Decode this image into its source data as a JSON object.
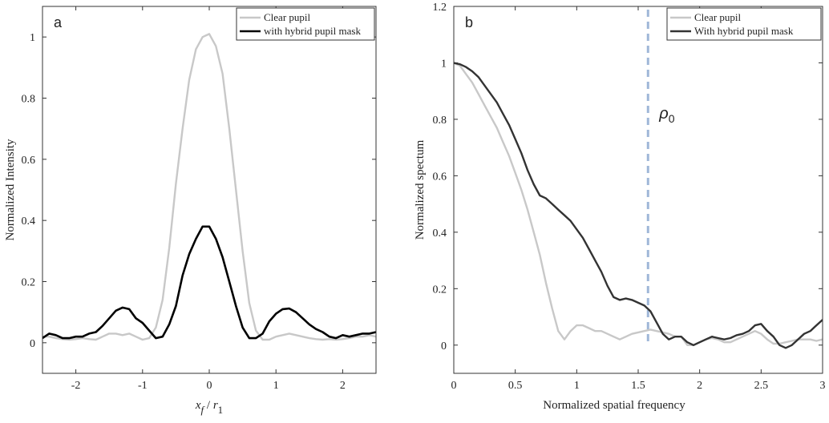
{
  "chart_data": [
    {
      "type": "line",
      "panel_label": "a",
      "xlabel_var": "x",
      "xlabel_var_sub": "f",
      "xlabel_sep": " / ",
      "xlabel_den": "r",
      "xlabel_den_sub": "1",
      "ylabel": "Normalized Intensity",
      "xlim": [
        -2.5,
        2.5
      ],
      "ylim": [
        -0.1,
        1.1
      ],
      "xticks": [
        -2,
        -1,
        0,
        1,
        2
      ],
      "yticks": [
        0,
        0.2,
        0.4,
        0.6,
        0.8,
        1
      ],
      "xticklabels": [
        "-2",
        "-1",
        "0",
        "1",
        "2"
      ],
      "yticklabels": [
        "0",
        "0.2",
        "0.4",
        "0.6",
        "0.8",
        "1"
      ],
      "legend_position": "top-right",
      "series": [
        {
          "name": "Clear pupil",
          "color": "#c8c8c8",
          "x": [
            -2.5,
            -2.4,
            -2.3,
            -2.2,
            -2.1,
            -2.0,
            -1.9,
            -1.8,
            -1.7,
            -1.6,
            -1.5,
            -1.4,
            -1.3,
            -1.2,
            -1.1,
            -1.0,
            -0.9,
            -0.8,
            -0.7,
            -0.6,
            -0.5,
            -0.4,
            -0.3,
            -0.2,
            -0.1,
            0.0,
            0.1,
            0.2,
            0.3,
            0.4,
            0.5,
            0.6,
            0.7,
            0.8,
            0.9,
            1.0,
            1.1,
            1.2,
            1.3,
            1.4,
            1.5,
            1.6,
            1.7,
            1.8,
            1.9,
            2.0,
            2.1,
            2.2,
            2.3,
            2.4,
            2.5
          ],
          "y": [
            0.02,
            0.02,
            0.015,
            0.012,
            0.01,
            0.012,
            0.015,
            0.012,
            0.01,
            0.02,
            0.03,
            0.03,
            0.025,
            0.03,
            0.02,
            0.01,
            0.015,
            0.05,
            0.14,
            0.31,
            0.52,
            0.7,
            0.86,
            0.96,
            1.0,
            1.01,
            0.97,
            0.88,
            0.7,
            0.5,
            0.3,
            0.13,
            0.04,
            0.01,
            0.01,
            0.02,
            0.025,
            0.03,
            0.025,
            0.02,
            0.015,
            0.012,
            0.01,
            0.012,
            0.01,
            0.012,
            0.015,
            0.02,
            0.02,
            0.025,
            0.02
          ]
        },
        {
          "name": "with hybrid pupil mask",
          "color": "#000000",
          "x": [
            -2.5,
            -2.4,
            -2.3,
            -2.2,
            -2.1,
            -2.0,
            -1.9,
            -1.8,
            -1.7,
            -1.6,
            -1.5,
            -1.4,
            -1.3,
            -1.2,
            -1.1,
            -1.0,
            -0.9,
            -0.8,
            -0.7,
            -0.6,
            -0.5,
            -0.4,
            -0.3,
            -0.2,
            -0.1,
            0.0,
            0.1,
            0.2,
            0.3,
            0.4,
            0.5,
            0.6,
            0.7,
            0.8,
            0.9,
            1.0,
            1.1,
            1.2,
            1.3,
            1.4,
            1.5,
            1.6,
            1.7,
            1.8,
            1.9,
            2.0,
            2.1,
            2.2,
            2.3,
            2.4,
            2.5
          ],
          "y": [
            0.015,
            0.03,
            0.025,
            0.015,
            0.015,
            0.02,
            0.02,
            0.03,
            0.035,
            0.055,
            0.08,
            0.105,
            0.115,
            0.11,
            0.08,
            0.065,
            0.04,
            0.015,
            0.02,
            0.06,
            0.12,
            0.22,
            0.29,
            0.34,
            0.38,
            0.38,
            0.34,
            0.28,
            0.2,
            0.12,
            0.05,
            0.015,
            0.015,
            0.03,
            0.07,
            0.095,
            0.11,
            0.112,
            0.1,
            0.08,
            0.06,
            0.045,
            0.035,
            0.02,
            0.015,
            0.025,
            0.02,
            0.025,
            0.03,
            0.03,
            0.035
          ]
        }
      ]
    },
    {
      "type": "line",
      "panel_label": "b",
      "xlabel": "Normalized spatial frequency",
      "ylabel": "Normalized spectum",
      "xlim": [
        0,
        3
      ],
      "ylim": [
        -0.1,
        1.2
      ],
      "xticks": [
        0,
        0.5,
        1,
        1.5,
        2,
        2.5,
        3
      ],
      "yticks": [
        0,
        0.2,
        0.4,
        0.6,
        0.8,
        1,
        1.2
      ],
      "xticklabels": [
        "0",
        "0.5",
        "1",
        "1.5",
        "2",
        "2.5",
        "3"
      ],
      "yticklabels": [
        "0",
        "0.2",
        "0.4",
        "0.6",
        "0.8",
        "1",
        "1.2"
      ],
      "legend_position": "top-right",
      "annotation": {
        "text": "ρ",
        "sub": "0",
        "x": 1.58,
        "line_color": "#9fb7d8"
      },
      "series": [
        {
          "name": "Clear pupil",
          "color": "#c8c8c8",
          "x": [
            0,
            0.05,
            0.1,
            0.15,
            0.2,
            0.25,
            0.3,
            0.35,
            0.4,
            0.45,
            0.5,
            0.55,
            0.6,
            0.65,
            0.7,
            0.75,
            0.8,
            0.85,
            0.9,
            0.95,
            1.0,
            1.05,
            1.1,
            1.15,
            1.2,
            1.25,
            1.3,
            1.35,
            1.4,
            1.45,
            1.5,
            1.55,
            1.6,
            1.65,
            1.7,
            1.75,
            1.8,
            1.85,
            1.9,
            1.95,
            2.0,
            2.05,
            2.1,
            2.15,
            2.2,
            2.25,
            2.3,
            2.35,
            2.4,
            2.45,
            2.5,
            2.55,
            2.6,
            2.65,
            2.7,
            2.75,
            2.8,
            2.85,
            2.9,
            2.95,
            3.0
          ],
          "y": [
            1.0,
            0.99,
            0.96,
            0.93,
            0.89,
            0.85,
            0.81,
            0.77,
            0.72,
            0.67,
            0.61,
            0.55,
            0.48,
            0.4,
            0.32,
            0.22,
            0.13,
            0.05,
            0.02,
            0.05,
            0.07,
            0.07,
            0.06,
            0.05,
            0.05,
            0.04,
            0.03,
            0.02,
            0.03,
            0.04,
            0.045,
            0.05,
            0.055,
            0.05,
            0.045,
            0.04,
            0.03,
            0.03,
            0.0,
            0.0,
            0.01,
            0.02,
            0.025,
            0.02,
            0.01,
            0.01,
            0.02,
            0.03,
            0.04,
            0.05,
            0.04,
            0.02,
            0.005,
            0.005,
            0.01,
            0.015,
            0.02,
            0.02,
            0.02,
            0.015,
            0.02
          ]
        },
        {
          "name": "With hybrid pupil mask",
          "color": "#333333",
          "x": [
            0,
            0.05,
            0.1,
            0.15,
            0.2,
            0.25,
            0.3,
            0.35,
            0.4,
            0.45,
            0.5,
            0.55,
            0.6,
            0.65,
            0.7,
            0.75,
            0.8,
            0.85,
            0.9,
            0.95,
            1.0,
            1.05,
            1.1,
            1.15,
            1.2,
            1.25,
            1.3,
            1.35,
            1.4,
            1.45,
            1.5,
            1.55,
            1.6,
            1.65,
            1.7,
            1.75,
            1.8,
            1.85,
            1.9,
            1.95,
            2.0,
            2.05,
            2.1,
            2.15,
            2.2,
            2.25,
            2.3,
            2.35,
            2.4,
            2.45,
            2.5,
            2.55,
            2.6,
            2.65,
            2.7,
            2.75,
            2.8,
            2.85,
            2.9,
            2.95,
            3.0
          ],
          "y": [
            1.0,
            0.995,
            0.985,
            0.97,
            0.95,
            0.92,
            0.89,
            0.86,
            0.82,
            0.78,
            0.73,
            0.68,
            0.62,
            0.57,
            0.53,
            0.52,
            0.5,
            0.48,
            0.46,
            0.44,
            0.41,
            0.38,
            0.34,
            0.3,
            0.26,
            0.21,
            0.17,
            0.16,
            0.165,
            0.16,
            0.15,
            0.14,
            0.12,
            0.08,
            0.04,
            0.02,
            0.03,
            0.03,
            0.01,
            0.0,
            0.01,
            0.02,
            0.03,
            0.025,
            0.02,
            0.025,
            0.035,
            0.04,
            0.05,
            0.07,
            0.075,
            0.05,
            0.03,
            0.0,
            -0.01,
            0.0,
            0.02,
            0.04,
            0.05,
            0.07,
            0.09
          ]
        }
      ]
    }
  ]
}
